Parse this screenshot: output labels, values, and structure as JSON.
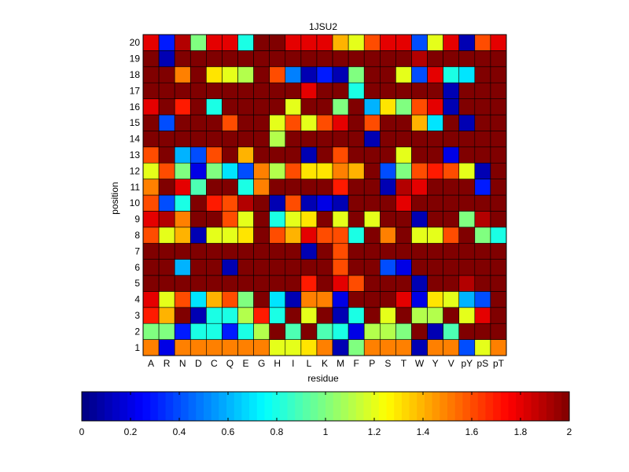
{
  "chart_data": {
    "type": "heatmap",
    "title": "1JSU2",
    "xlabel": "residue",
    "ylabel": "position",
    "x_categories": [
      "A",
      "R",
      "N",
      "D",
      "C",
      "Q",
      "E",
      "G",
      "H",
      "I",
      "L",
      "K",
      "M",
      "F",
      "P",
      "S",
      "T",
      "W",
      "Y",
      "V",
      "pY",
      "pS",
      "pT"
    ],
    "y_categories": [
      "1",
      "2",
      "3",
      "4",
      "5",
      "6",
      "7",
      "8",
      "9",
      "10",
      "11",
      "12",
      "13",
      "14",
      "15",
      "16",
      "17",
      "18",
      "19",
      "20"
    ],
    "values": [
      [
        1.5,
        0.2,
        1.5,
        1.5,
        1.5,
        1.5,
        1.5,
        1.5,
        1.2,
        1.2,
        1.3,
        1.5,
        0.1,
        1.0,
        1.5,
        1.5,
        1.5,
        0.1,
        1.5,
        1.5,
        0.4,
        1.2,
        1.5
      ],
      [
        1.0,
        1.0,
        0.3,
        0.8,
        0.8,
        0.3,
        0.8,
        1.1,
        2.0,
        0.9,
        2.0,
        0.9,
        0.8,
        0.2,
        1.1,
        1.1,
        1.0,
        2.0,
        0.1,
        0.9,
        2.0,
        2.0,
        2.0
      ],
      [
        1.7,
        1.4,
        2.0,
        0.1,
        0.8,
        0.8,
        1.1,
        1.7,
        0.8,
        2.0,
        1.2,
        2.0,
        0.1,
        0.8,
        2.0,
        1.2,
        2.0,
        1.1,
        1.1,
        2.0,
        1.2,
        1.8,
        2.0
      ],
      [
        1.8,
        1.2,
        1.6,
        0.7,
        1.4,
        1.6,
        1.0,
        2.0,
        0.7,
        0.1,
        1.5,
        1.5,
        0.2,
        2.0,
        2.0,
        2.0,
        1.8,
        0.2,
        1.3,
        1.2,
        0.6,
        0.4,
        2.0
      ],
      [
        2.0,
        2.0,
        2.0,
        2.0,
        2.0,
        2.0,
        2.0,
        2.0,
        2.0,
        2.0,
        1.7,
        2.0,
        1.8,
        1.6,
        2.0,
        2.0,
        2.0,
        0.1,
        2.0,
        2.0,
        1.9,
        2.0,
        2.0
      ],
      [
        2.0,
        2.0,
        0.6,
        2.0,
        2.0,
        0.1,
        2.0,
        2.0,
        2.0,
        2.0,
        2.0,
        2.0,
        1.6,
        2.0,
        2.0,
        0.4,
        0.2,
        2.0,
        2.0,
        2.0,
        2.0,
        2.0,
        2.0
      ],
      [
        2.0,
        2.0,
        2.0,
        2.0,
        2.0,
        2.0,
        2.0,
        2.0,
        2.0,
        2.0,
        0.1,
        2.0,
        1.6,
        2.0,
        2.0,
        2.0,
        2.0,
        2.0,
        2.0,
        2.0,
        2.0,
        2.0,
        2.0
      ],
      [
        1.6,
        1.2,
        1.4,
        0.1,
        1.2,
        1.2,
        1.3,
        2.0,
        1.6,
        1.4,
        1.8,
        1.6,
        1.6,
        0.8,
        2.0,
        1.5,
        2.0,
        1.2,
        1.2,
        1.6,
        2.0,
        1.0,
        0.8
      ],
      [
        1.8,
        1.9,
        1.5,
        2.0,
        2.0,
        1.6,
        1.2,
        2.0,
        0.8,
        1.2,
        1.3,
        2.0,
        1.2,
        2.0,
        1.2,
        2.0,
        2.0,
        0.1,
        2.0,
        2.0,
        1.0,
        1.9,
        2.0
      ],
      [
        1.6,
        0.4,
        0.8,
        2.0,
        1.7,
        1.6,
        1.9,
        2.0,
        0.1,
        1.6,
        0.1,
        0.2,
        0.1,
        2.0,
        2.0,
        2.0,
        1.8,
        2.0,
        2.0,
        2.0,
        2.0,
        2.0,
        2.0
      ],
      [
        1.5,
        2.0,
        1.8,
        0.9,
        2.0,
        2.0,
        0.8,
        1.5,
        2.0,
        2.0,
        2.0,
        2.0,
        1.7,
        2.0,
        2.0,
        0.1,
        1.9,
        1.8,
        2.0,
        2.0,
        2.0,
        0.3,
        2.0
      ],
      [
        1.2,
        1.6,
        1.0,
        0.2,
        1.0,
        0.7,
        0.4,
        1.5,
        1.1,
        1.6,
        1.3,
        1.3,
        1.5,
        1.4,
        2.0,
        0.4,
        1.0,
        1.6,
        1.7,
        1.6,
        1.2,
        0.1,
        2.0
      ],
      [
        1.6,
        2.0,
        0.6,
        0.4,
        1.6,
        2.0,
        1.4,
        2.0,
        2.0,
        2.0,
        0.1,
        2.0,
        1.6,
        2.0,
        2.0,
        2.0,
        1.2,
        2.0,
        2.0,
        0.2,
        2.0,
        2.0,
        2.0
      ],
      [
        2.0,
        2.0,
        2.0,
        2.0,
        2.0,
        2.0,
        2.0,
        2.0,
        1.1,
        2.0,
        2.0,
        2.0,
        2.0,
        2.0,
        0.1,
        2.0,
        2.0,
        2.0,
        2.0,
        2.0,
        2.0,
        2.0,
        2.0
      ],
      [
        2.0,
        0.4,
        2.0,
        2.0,
        2.0,
        1.6,
        2.0,
        2.0,
        1.2,
        1.6,
        1.2,
        1.6,
        1.8,
        2.0,
        1.6,
        2.0,
        2.0,
        1.4,
        0.7,
        2.0,
        0.1,
        2.0,
        2.0
      ],
      [
        1.8,
        2.0,
        1.7,
        2.0,
        0.8,
        2.0,
        2.0,
        2.0,
        2.0,
        1.2,
        2.0,
        2.0,
        1.0,
        2.0,
        0.6,
        1.3,
        1.0,
        1.6,
        1.8,
        0.1,
        2.0,
        2.0,
        2.0
      ],
      [
        2.0,
        2.0,
        2.0,
        2.0,
        2.0,
        2.0,
        2.0,
        2.0,
        2.0,
        2.0,
        1.8,
        2.0,
        2.0,
        0.8,
        2.0,
        2.0,
        2.0,
        2.0,
        2.0,
        0.1,
        2.0,
        2.0,
        2.0
      ],
      [
        2.0,
        2.0,
        1.5,
        2.0,
        1.3,
        1.2,
        1.1,
        2.0,
        1.6,
        0.5,
        0.1,
        0.3,
        0.1,
        1.0,
        2.0,
        2.0,
        1.2,
        0.4,
        1.8,
        0.8,
        0.7,
        2.0,
        2.0
      ],
      [
        2.0,
        0.1,
        2.0,
        2.0,
        2.0,
        2.0,
        2.0,
        2.0,
        2.0,
        2.0,
        2.0,
        2.0,
        2.0,
        2.0,
        2.0,
        2.0,
        2.0,
        1.9,
        2.0,
        2.0,
        2.0,
        2.0,
        2.0
      ],
      [
        1.8,
        0.3,
        1.9,
        1.0,
        1.8,
        1.8,
        0.8,
        2.0,
        2.0,
        1.8,
        1.8,
        1.8,
        1.4,
        1.2,
        1.6,
        1.8,
        1.8,
        0.4,
        1.2,
        1.8,
        0.1,
        1.6,
        1.8
      ]
    ],
    "zlim": [
      0,
      2
    ],
    "colormap": "jet",
    "colorbar": {
      "orientation": "horizontal",
      "ticks": [
        "0",
        "0.2",
        "0.4",
        "0.6",
        "0.8",
        "1",
        "1.2",
        "1.4",
        "1.6",
        "1.8",
        "2"
      ]
    },
    "grid": true,
    "legend": "none"
  }
}
